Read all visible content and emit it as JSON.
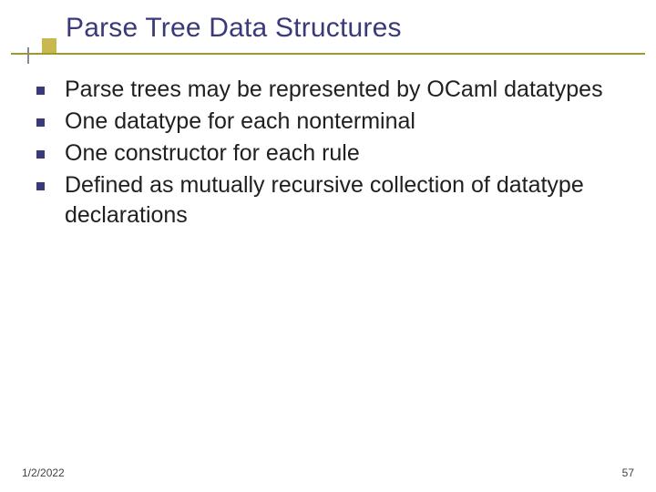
{
  "title": {
    "text": "Parse Tree Data Structures",
    "color": "#3a3a7a",
    "fontsize": 30
  },
  "ornament": {
    "square_color": "#c8b850",
    "line_color": "#a09830",
    "vline_color": "#8a8a8a"
  },
  "bullets": {
    "marker_color": "#3a3a7a",
    "marker_size": 9,
    "text_color": "#202020",
    "text_fontsize": 25,
    "items": [
      "Parse trees may be represented by OCaml datatypes",
      "One datatype for each nonterminal",
      "One constructor for each rule",
      "Defined as mutually recursive collection of datatype declarations"
    ]
  },
  "footer": {
    "date": "1/2/2022",
    "page": "57",
    "fontsize": 12,
    "color": "#404040"
  },
  "background_color": "#ffffff",
  "slide_width": 720,
  "slide_height": 540
}
